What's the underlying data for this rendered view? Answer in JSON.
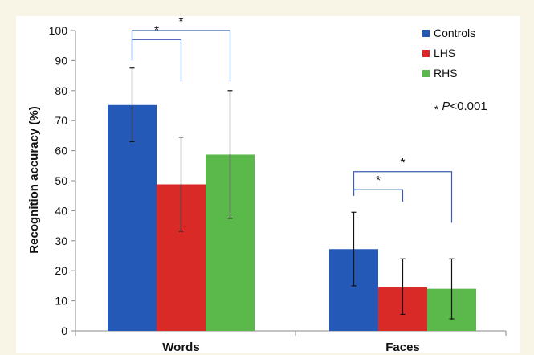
{
  "chart_data": {
    "type": "bar",
    "categories": [
      "Words",
      "Faces"
    ],
    "series": [
      {
        "name": "Controls",
        "color": "#2459b8",
        "values": [
          75.2,
          27.2
        ],
        "err_low": [
          63.0,
          15.0
        ],
        "err_high": [
          87.5,
          39.5
        ]
      },
      {
        "name": "LHS",
        "color": "#d92a27",
        "values": [
          48.8,
          14.7
        ],
        "err_low": [
          33.2,
          5.5
        ],
        "err_high": [
          64.5,
          24.0
        ]
      },
      {
        "name": "RHS",
        "color": "#5bb84a",
        "values": [
          58.7,
          14.0
        ],
        "err_low": [
          37.5,
          4.0
        ],
        "err_high": [
          80.0,
          24.0
        ]
      }
    ],
    "ylabel": "Recognition accuracy (%)",
    "xlabel": "",
    "ylim": [
      0,
      100
    ],
    "yticks": [
      0,
      10,
      20,
      30,
      40,
      50,
      60,
      70,
      80,
      90,
      100
    ],
    "grid": false,
    "legend_position": "top-right",
    "annotation": {
      "marker": "*",
      "italic": "P",
      "text": "<0.001"
    },
    "significance": [
      {
        "category": "Words",
        "from": "Controls",
        "to": "LHS",
        "level": 97,
        "label": "*"
      },
      {
        "category": "Words",
        "from": "Controls",
        "to": "RHS",
        "level": 100,
        "label": "*"
      },
      {
        "category": "Faces",
        "from": "Controls",
        "to": "LHS",
        "level": 47,
        "label": "*"
      },
      {
        "category": "Faces",
        "from": "Controls",
        "to": "RHS",
        "level": 53,
        "label": "*"
      }
    ],
    "colors": {
      "axis": "#888888",
      "bracket": "#3b5fb0",
      "error_bar": "#111111"
    }
  }
}
